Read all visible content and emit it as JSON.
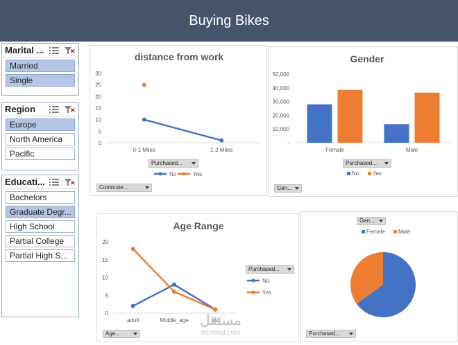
{
  "header": {
    "title": "Buying Bikes"
  },
  "slicers": [
    {
      "title": "Marital ...",
      "items": [
        {
          "label": "Married",
          "selected": true
        },
        {
          "label": "Single",
          "selected": true
        }
      ]
    },
    {
      "title": "Region",
      "items": [
        {
          "label": "Europe",
          "selected": true
        },
        {
          "label": "North America",
          "selected": false
        },
        {
          "label": "Pacific",
          "selected": false
        }
      ]
    },
    {
      "title": "Educati...",
      "items": [
        {
          "label": "Bachelors",
          "selected": false
        },
        {
          "label": "Graduate Degr...",
          "selected": true
        },
        {
          "label": "High School",
          "selected": false
        },
        {
          "label": "Partial College",
          "selected": false
        },
        {
          "label": "Partial High S...",
          "selected": false
        }
      ]
    }
  ],
  "colors": {
    "no": "#4472c4",
    "yes": "#ed7d31",
    "header": "#44546a",
    "slicer_selected": "#b4c6e7"
  },
  "chart_data": [
    {
      "type": "line",
      "title": "distance from work",
      "categories": [
        "0-1 Miles",
        "1-2 Miles"
      ],
      "series": [
        {
          "name": "No",
          "values": [
            10,
            1
          ]
        },
        {
          "name": "Yes",
          "values": [
            25,
            null
          ]
        }
      ],
      "ylim": [
        0,
        30
      ],
      "yticks": [
        "0",
        "5",
        "10",
        "15",
        "20",
        "25",
        "30"
      ],
      "legend": "bottom",
      "field_buttons": {
        "legend": "Purchased...",
        "axis": "Commute..."
      }
    },
    {
      "type": "bar",
      "title": "Gender",
      "categories": [
        "Female",
        "Male"
      ],
      "series": [
        {
          "name": "No",
          "values": [
            28000,
            13500
          ]
        },
        {
          "name": "Yes",
          "values": [
            38500,
            36500
          ]
        }
      ],
      "ylim": [
        0,
        50000
      ],
      "yticks": [
        "-",
        "10,000",
        "20,000",
        "30,000",
        "40,000",
        "50,000"
      ],
      "legend": "bottom",
      "field_buttons": {
        "legend": "Purchased...",
        "axis": "Gen..."
      }
    },
    {
      "type": "line",
      "title": "Age  Range",
      "categories": [
        "adult",
        "Middle_age",
        "old"
      ],
      "series": [
        {
          "name": "No",
          "values": [
            2,
            8,
            1
          ]
        },
        {
          "name": "Yes",
          "values": [
            18,
            6,
            1
          ]
        }
      ],
      "ylim": [
        0,
        20
      ],
      "yticks": [
        "0",
        "5",
        "10",
        "15",
        "20"
      ],
      "legend": "right",
      "field_buttons": {
        "legend": "Purchased...",
        "axis": "Age..."
      }
    },
    {
      "type": "pie",
      "title": "",
      "categories": [
        "Female",
        "Male"
      ],
      "values": [
        65,
        35
      ],
      "legend": "top",
      "field_buttons": {
        "legend": "Gen...",
        "values": "Purchased..."
      }
    }
  ],
  "watermark": {
    "text": "مستقل",
    "sub": "mostaql.com"
  }
}
